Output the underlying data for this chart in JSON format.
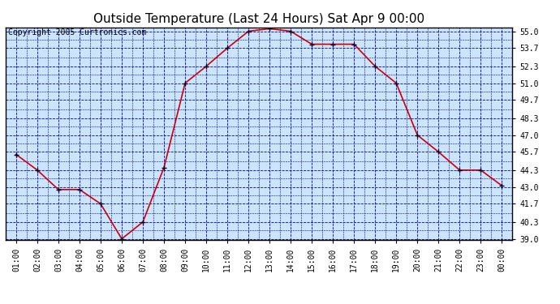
{
  "title": "Outside Temperature (Last 24 Hours) Sat Apr 9 00:00",
  "copyright_text": "Copyright 2005 Curtronics.com",
  "x_labels": [
    "01:00",
    "02:00",
    "03:00",
    "04:00",
    "05:00",
    "06:00",
    "07:00",
    "08:00",
    "09:00",
    "10:00",
    "11:00",
    "12:00",
    "13:00",
    "14:00",
    "15:00",
    "16:00",
    "17:00",
    "18:00",
    "19:00",
    "20:00",
    "21:00",
    "22:00",
    "23:00",
    "00:00"
  ],
  "y_values": [
    45.5,
    44.3,
    42.8,
    42.8,
    41.7,
    39.0,
    40.3,
    44.5,
    51.0,
    52.3,
    53.7,
    55.0,
    55.2,
    55.0,
    54.0,
    54.0,
    54.0,
    52.3,
    51.0,
    47.0,
    45.7,
    44.3,
    44.3,
    43.1
  ],
  "ylim_min": 39.0,
  "ylim_max": 55.0,
  "yticks": [
    39.0,
    40.3,
    41.7,
    43.0,
    44.3,
    45.7,
    47.0,
    48.3,
    49.7,
    51.0,
    52.3,
    53.7,
    55.0
  ],
  "ytick_labels": [
    "39.0",
    "40.3",
    "41.7",
    "43.0",
    "44.3",
    "45.7",
    "47.0",
    "48.3",
    "49.7",
    "51.0",
    "52.3",
    "53.7",
    "55.0"
  ],
  "line_color": "#cc0000",
  "marker_color": "#000033",
  "bg_color": "#cce5ff",
  "outer_bg_color": "#ffffff",
  "grid_color": "#0000bb",
  "title_fontsize": 11,
  "copyright_fontsize": 7,
  "tick_fontsize": 7
}
